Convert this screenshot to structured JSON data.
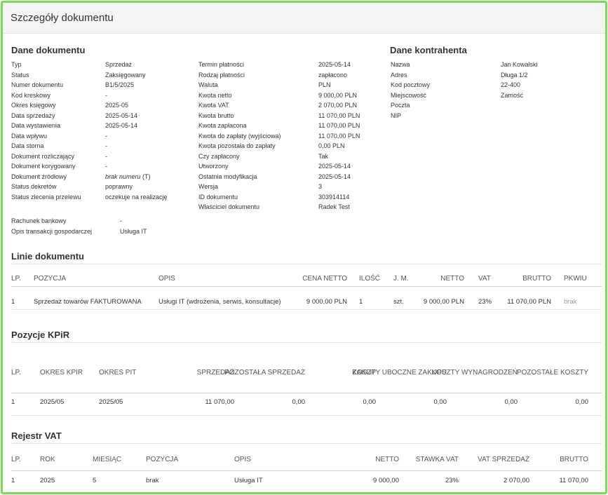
{
  "header": {
    "title": "Szczegóły dokumentu"
  },
  "dane_dokumentu": {
    "title": "Dane dokumentu",
    "col1": [
      {
        "k": "Typ",
        "v": "Sprzedaż"
      },
      {
        "k": "Status",
        "v": "Zaksięgowany"
      },
      {
        "k": "Numer dokumentu",
        "v": "B1/5/2025"
      },
      {
        "k": "Kod kreskowy",
        "v": "-"
      },
      {
        "k": "Okres księgowy",
        "v": "2025-05"
      },
      {
        "k": "Data sprzedaży",
        "v": "2025-05-14"
      },
      {
        "k": "Data wystawienia",
        "v": "2025-05-14"
      },
      {
        "k": "Data wpływu",
        "v": "-"
      },
      {
        "k": "Data storna",
        "v": "-"
      },
      {
        "k": "Dokument rozliczający",
        "v": "-"
      },
      {
        "k": "Dokument korygowany",
        "v": "-"
      },
      {
        "k": "Dokument źródłowy",
        "v": "brak numeru",
        "v2": " (T)"
      },
      {
        "k": "Status dekretów",
        "v": "poprawny"
      },
      {
        "k": "Status zlecenia przelewu",
        "v": "oczekuje na realizację"
      }
    ],
    "col2": [
      {
        "k": "Termin płatności",
        "v": "2025-05-14"
      },
      {
        "k": "Rodzaj płatności",
        "v": "zapłacono"
      },
      {
        "k": "Waluta",
        "v": "PLN"
      },
      {
        "k": "Kwota netto",
        "v": "9 000,00 PLN"
      },
      {
        "k": "Kwota VAT",
        "v": "2 070,00 PLN"
      },
      {
        "k": "Kwota brutto",
        "v": "11 070,00 PLN"
      },
      {
        "k": "Kwota zapłacona",
        "v": "11 070,00 PLN"
      },
      {
        "k": "Kwota do zapłaty (wyjściowa)",
        "v": "11 070,00 PLN"
      },
      {
        "k": "Kwota pozostała do zapłaty",
        "v": "0,00 PLN"
      },
      {
        "k": "Czy zapłacony",
        "v": "Tak"
      },
      {
        "k": "Utworzony",
        "v": "2025-05-14"
      },
      {
        "k": "Ostatnia modyfikacja",
        "v": "2025-05-14"
      },
      {
        "k": "Wersja",
        "v": "3"
      },
      {
        "k": "ID dokumentu",
        "v": "303914114"
      },
      {
        "k": "Właściciel dokumentu",
        "v": "Radek Test"
      }
    ],
    "extra": [
      {
        "k": "Rachunek bankowy",
        "v": "-"
      },
      {
        "k": "Opis transakcji gospodarczej",
        "v": "Usługa IT"
      }
    ]
  },
  "dane_kontrahenta": {
    "title": "Dane kontrahenta",
    "rows": [
      {
        "k": "Nazwa",
        "v": "Jan Kowalski"
      },
      {
        "k": "Adres",
        "v": "Długa 1/2"
      },
      {
        "k": "Kod pocztowy",
        "v": "22-400"
      },
      {
        "k": "Miejscowość",
        "v": "Zamość"
      },
      {
        "k": "Poczta",
        "v": ""
      },
      {
        "k": "NIP",
        "v": ""
      }
    ]
  },
  "linie": {
    "title": "Linie dokumentu",
    "headers": [
      "LP.",
      "POZYCJA",
      "OPIS",
      "CENA NETTO",
      "ILOŚĆ",
      "J. M.",
      "NETTO",
      "VAT",
      "BRUTTO",
      "PKWIU"
    ],
    "row": [
      "1",
      "Sprzedaż towarów FAKTUROWANA",
      "Usługi IT (wdrożenia, serwis, konsultacje)",
      "9 000,00 PLN",
      "1",
      "szt.",
      "9 000,00 PLN",
      "23%",
      "11 070,00 PLN",
      "brak"
    ]
  },
  "kpir": {
    "title": "Pozycje KPiR",
    "headers": [
      "LP.",
      "OKRES KPIR",
      "OKRES PIT",
      "SPRZEDAŻ",
      "POZOSTAŁA SPRZEDAŻ",
      "ZAKUP",
      "KOSZTY UBOCZNE ZAKUPU",
      "KOSZTY WYNAGRODZEŃ",
      "POZOSTAŁE KOSZTY"
    ],
    "row": [
      "1",
      "2025/05",
      "2025/05",
      "11 070,00",
      "0,00",
      "0,00",
      "0,00",
      "0,00",
      "0,00"
    ]
  },
  "vat": {
    "title": "Rejestr VAT",
    "headers": [
      "LP.",
      "ROK",
      "MIESIĄC",
      "POZYCJA",
      "OPIS",
      "NETTO",
      "STAWKA VAT",
      "VAT SPRZEDAŻ",
      "BRUTTO"
    ],
    "row": [
      "1",
      "2025",
      "5",
      "brak",
      "Usługa IT",
      "9 000,00",
      "23%",
      "2 070,00",
      "11 070,00"
    ]
  }
}
